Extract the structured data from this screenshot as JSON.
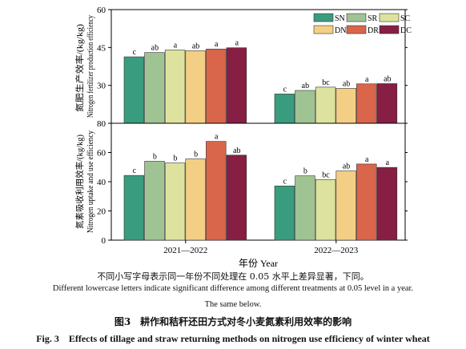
{
  "colors": {
    "SN": "#3a9c7e",
    "SR": "#9fc392",
    "SC": "#dde39e",
    "DN": "#f3cf85",
    "DR": "#d9654a",
    "DC": "#861f43"
  },
  "chart_data": [
    {
      "type": "bar",
      "ylabel_zh": "氮肥生产效率/(kg/kg)",
      "ylabel_en": "Nitrogen fertilizer production efficiency",
      "ylim": [
        0,
        60
      ],
      "yticks": [
        30,
        45,
        60
      ],
      "y_tick_labels": [
        "30",
        "45",
        "60"
      ],
      "groups": [
        "2021—2022",
        "2022—2023"
      ],
      "legend_placement": "top-right",
      "series": [
        {
          "name": "SN",
          "values": [
            41.3,
            26.6
          ],
          "letters": [
            "c",
            "c"
          ]
        },
        {
          "name": "SR",
          "values": [
            43.0,
            28.0
          ],
          "letters": [
            "ab",
            "ab"
          ]
        },
        {
          "name": "SC",
          "values": [
            44.0,
            29.3
          ],
          "letters": [
            "a",
            "bc"
          ]
        },
        {
          "name": "DN",
          "values": [
            43.7,
            28.8
          ],
          "letters": [
            "ab",
            "ab"
          ]
        },
        {
          "name": "DR",
          "values": [
            44.4,
            30.6
          ],
          "letters": [
            "a",
            "a"
          ]
        },
        {
          "name": "DC",
          "values": [
            44.9,
            30.7
          ],
          "letters": [
            "a",
            "ab"
          ]
        }
      ]
    },
    {
      "type": "bar",
      "ylabel_zh": "氮素吸收利用效率/(kg/kg)",
      "ylabel_en": "Nitrogen uptake and use efficiency",
      "ylim": [
        0,
        80
      ],
      "yticks": [
        0,
        20,
        40,
        60,
        80
      ],
      "y_tick_labels": [
        "0",
        "20",
        "40",
        "60",
        "80"
      ],
      "groups": [
        "2021—2022",
        "2022—2023"
      ],
      "xlabel": "年份 Year",
      "series": [
        {
          "name": "SN",
          "values": [
            44.3,
            37.1
          ],
          "letters": [
            "c",
            "c"
          ]
        },
        {
          "name": "SR",
          "values": [
            54.0,
            44.0
          ],
          "letters": [
            "b",
            "b"
          ]
        },
        {
          "name": "SC",
          "values": [
            52.8,
            41.5
          ],
          "letters": [
            "b",
            "bc"
          ]
        },
        {
          "name": "DN",
          "values": [
            55.6,
            47.4
          ],
          "letters": [
            "b",
            "ab"
          ]
        },
        {
          "name": "DR",
          "values": [
            67.6,
            52.1
          ],
          "letters": [
            "a",
            "a"
          ]
        },
        {
          "name": "DC",
          "values": [
            58.2,
            49.8
          ],
          "letters": [
            "ab",
            "a"
          ]
        }
      ]
    }
  ],
  "caption": {
    "note_zh": "不同小写字母表示同一年份不同处理在 0.05 水平上差异显著，下同。",
    "note_en": "Different lowercase letters indicate significant difference among different treatments at 0.05 level in a year.",
    "note_en_2": "The same below.",
    "title_zh": "图3　耕作和秸秆还田方式对冬小麦氮素利用效率的影响",
    "title_en": "Fig. 3　Effects of tillage and straw returning methods on nitrogen use efficiency of winter wheat"
  }
}
